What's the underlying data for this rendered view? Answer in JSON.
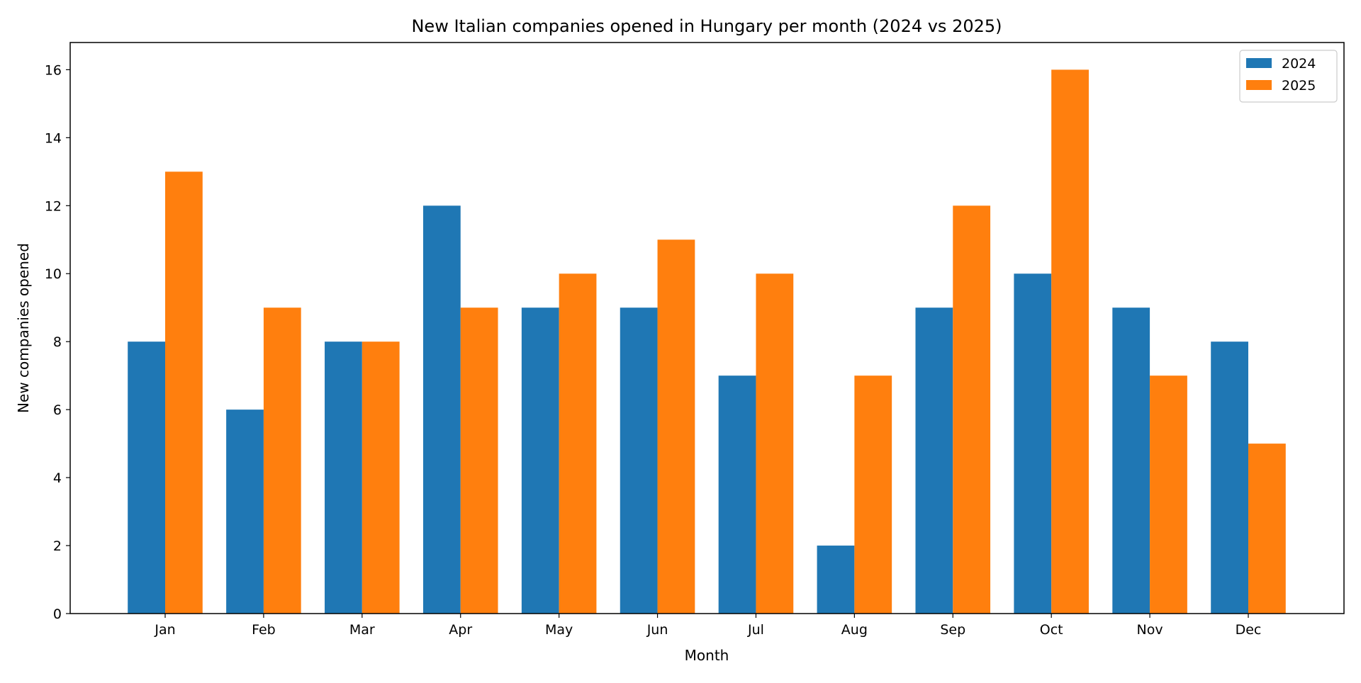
{
  "chart_data": {
    "type": "bar",
    "title": "New Italian companies opened in Hungary per month (2024 vs 2025)",
    "xlabel": "Month",
    "ylabel": "New companies opened",
    "categories": [
      "Jan",
      "Feb",
      "Mar",
      "Apr",
      "May",
      "Jun",
      "Jul",
      "Aug",
      "Sep",
      "Oct",
      "Nov",
      "Dec"
    ],
    "series": [
      {
        "name": "2024",
        "color": "#1f77b4",
        "values": [
          8,
          6,
          8,
          12,
          9,
          9,
          7,
          2,
          9,
          10,
          9,
          8
        ]
      },
      {
        "name": "2025",
        "color": "#ff7f0e",
        "values": [
          13,
          9,
          8,
          9,
          10,
          11,
          10,
          7,
          12,
          16,
          7,
          5
        ]
      }
    ],
    "ylim": [
      0,
      16.8
    ],
    "yticks": [
      0,
      2,
      4,
      6,
      8,
      10,
      12,
      14,
      16
    ],
    "grid": false,
    "legend": "top-right"
  }
}
